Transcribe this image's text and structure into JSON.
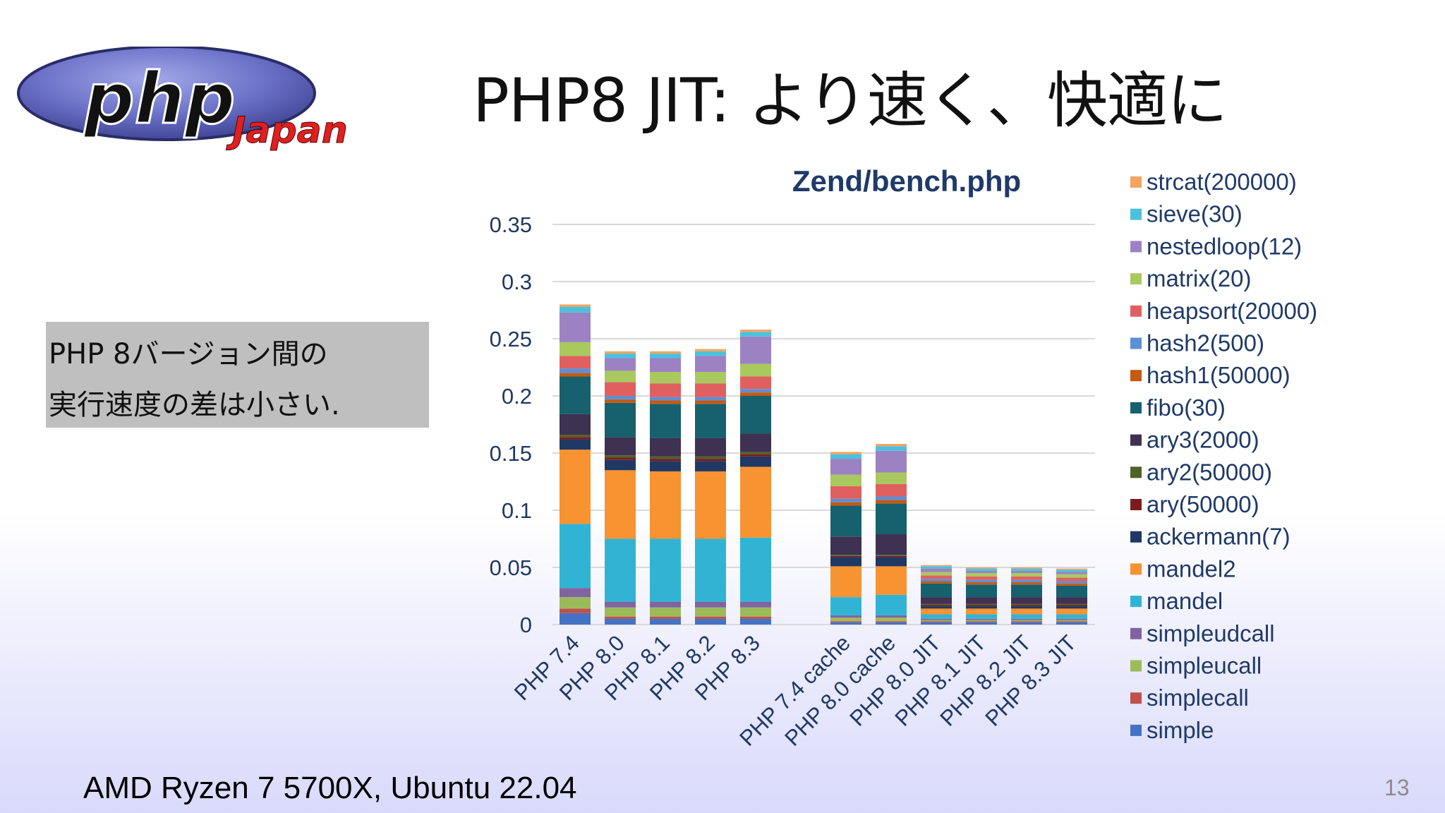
{
  "slide": {
    "title": "PHP8 JIT:  より速く、快適に",
    "note_lines": [
      "PHP 8バージョン間の",
      "実行速度の差は小さい."
    ],
    "footer": "AMD Ryzen 7 5700X, Ubuntu 22.04",
    "page_number": "13",
    "logo_text_main": "php",
    "logo_text_sub": "Japan"
  },
  "chart_data": {
    "type": "bar",
    "stacked": true,
    "title": "Zend/bench.php",
    "xlabel": "",
    "ylabel": "",
    "ylim": [
      0,
      0.35
    ],
    "yticks": [
      "0",
      "0.05",
      "0.1",
      "0.15",
      "0.2",
      "0.25",
      "0.3",
      "0.35"
    ],
    "grid": true,
    "legend_position": "right",
    "categories": [
      "PHP 7.4",
      "PHP 8.0",
      "PHP 8.1",
      "PHP 8.2",
      "PHP 8.3",
      "PHP 7.4 cache",
      "PHP 8.0 cache",
      "PHP 8.0 JIT",
      "PHP 8.1 JIT",
      "PHP 8.2 JIT",
      "PHP 8.3 JIT"
    ],
    "gap_after_index": 4,
    "series": [
      {
        "name": "simple",
        "color": "#4472c4",
        "values": [
          0.01,
          0.005,
          0.005,
          0.005,
          0.005,
          0.002,
          0.002,
          0.002,
          0.002,
          0.002,
          0.002
        ]
      },
      {
        "name": "simplecall",
        "color": "#c0504d",
        "values": [
          0.004,
          0.002,
          0.002,
          0.002,
          0.002,
          0.001,
          0.001,
          0.001,
          0.001,
          0.001,
          0.001
        ]
      },
      {
        "name": "simpleucall",
        "color": "#9bbb59",
        "values": [
          0.01,
          0.008,
          0.008,
          0.008,
          0.008,
          0.003,
          0.003,
          0.001,
          0.001,
          0.001,
          0.001
        ]
      },
      {
        "name": "simpleudcall",
        "color": "#8064a2",
        "values": [
          0.008,
          0.005,
          0.005,
          0.005,
          0.005,
          0.002,
          0.002,
          0.001,
          0.001,
          0.001,
          0.001
        ]
      },
      {
        "name": "mandel",
        "color": "#31b4d4",
        "values": [
          0.056,
          0.055,
          0.055,
          0.055,
          0.056,
          0.016,
          0.018,
          0.004,
          0.004,
          0.004,
          0.004
        ]
      },
      {
        "name": "mandel2",
        "color": "#f79331",
        "values": [
          0.065,
          0.06,
          0.059,
          0.059,
          0.062,
          0.027,
          0.025,
          0.005,
          0.005,
          0.005,
          0.005
        ]
      },
      {
        "name": "ackermann(7)",
        "color": "#1f3864",
        "values": [
          0.009,
          0.009,
          0.009,
          0.009,
          0.009,
          0.008,
          0.008,
          0.002,
          0.002,
          0.002,
          0.002
        ]
      },
      {
        "name": "ary(50000)",
        "color": "#7b1c1c",
        "values": [
          0.002,
          0.002,
          0.002,
          0.002,
          0.002,
          0.001,
          0.001,
          0.001,
          0.001,
          0.001,
          0.001
        ]
      },
      {
        "name": "ary2(50000)",
        "color": "#4f6228",
        "values": [
          0.002,
          0.002,
          0.002,
          0.002,
          0.002,
          0.001,
          0.001,
          0.001,
          0.001,
          0.001,
          0.001
        ]
      },
      {
        "name": "ary3(2000)",
        "color": "#3f3151",
        "values": [
          0.018,
          0.016,
          0.016,
          0.016,
          0.016,
          0.016,
          0.018,
          0.006,
          0.006,
          0.006,
          0.006
        ]
      },
      {
        "name": "fibo(30)",
        "color": "#17606d",
        "values": [
          0.033,
          0.03,
          0.03,
          0.03,
          0.033,
          0.027,
          0.027,
          0.012,
          0.011,
          0.011,
          0.01
        ]
      },
      {
        "name": "hash1(50000)",
        "color": "#c55a11",
        "values": [
          0.003,
          0.003,
          0.003,
          0.003,
          0.003,
          0.003,
          0.003,
          0.002,
          0.002,
          0.002,
          0.002
        ]
      },
      {
        "name": "hash2(500)",
        "color": "#5b8fd6",
        "values": [
          0.004,
          0.003,
          0.003,
          0.003,
          0.003,
          0.003,
          0.003,
          0.002,
          0.002,
          0.002,
          0.002
        ]
      },
      {
        "name": "heapsort(20000)",
        "color": "#e06060",
        "values": [
          0.011,
          0.012,
          0.012,
          0.012,
          0.011,
          0.011,
          0.011,
          0.003,
          0.003,
          0.003,
          0.003
        ]
      },
      {
        "name": "matrix(20)",
        "color": "#a9c95e",
        "values": [
          0.012,
          0.01,
          0.01,
          0.01,
          0.011,
          0.01,
          0.01,
          0.003,
          0.003,
          0.003,
          0.003
        ]
      },
      {
        "name": "nestedloop(12)",
        "color": "#9c82c2",
        "values": [
          0.026,
          0.011,
          0.012,
          0.014,
          0.024,
          0.014,
          0.019,
          0.003,
          0.002,
          0.002,
          0.002
        ]
      },
      {
        "name": "sieve(30)",
        "color": "#4bc1dd",
        "values": [
          0.005,
          0.004,
          0.004,
          0.004,
          0.004,
          0.004,
          0.004,
          0.002,
          0.002,
          0.002,
          0.002
        ]
      },
      {
        "name": "strcat(200000)",
        "color": "#f4a460",
        "values": [
          0.002,
          0.002,
          0.002,
          0.002,
          0.002,
          0.002,
          0.002,
          0.001,
          0.001,
          0.001,
          0.001
        ]
      }
    ]
  }
}
